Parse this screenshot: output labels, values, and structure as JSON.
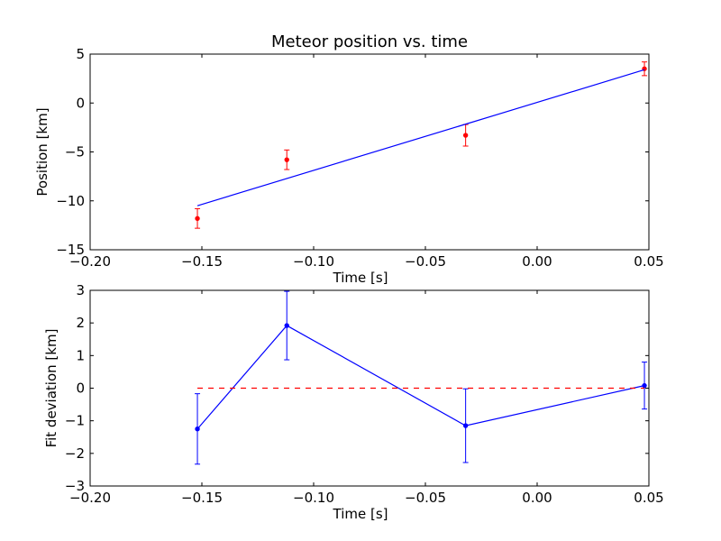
{
  "chart_data": [
    {
      "type": "scatter",
      "title": "Meteor position vs. time",
      "xlabel": "Time [s]",
      "ylabel": "Position [km]",
      "xlim": [
        -0.2,
        0.05
      ],
      "ylim": [
        -15,
        5
      ],
      "x_ticks": [
        -0.2,
        -0.15,
        -0.1,
        -0.05,
        0.0,
        0.05
      ],
      "x_tick_labels": [
        "−0.20",
        "−0.15",
        "−0.10",
        "−0.05",
        "0.00",
        "0.05"
      ],
      "y_ticks": [
        -15,
        -10,
        -5,
        0,
        5
      ],
      "y_tick_labels": [
        "−15",
        "−10",
        "−5",
        "0",
        "5"
      ],
      "grid": false,
      "colors": {
        "data": "#ff0000",
        "fit": "#0000ff"
      },
      "series": [
        {
          "style": "points-with-errorbars",
          "x": [
            -0.152,
            -0.112,
            -0.032,
            0.048
          ],
          "y": [
            -11.8,
            -5.8,
            -3.3,
            3.5
          ],
          "yerr": [
            1.0,
            1.0,
            1.1,
            0.7
          ]
        },
        {
          "style": "line",
          "x": [
            -0.152,
            0.048
          ],
          "y": [
            -10.5,
            3.4
          ]
        }
      ]
    },
    {
      "type": "scatter",
      "xlabel": "Time [s]",
      "ylabel": "Fit deviation [km]",
      "xlim": [
        -0.2,
        0.05
      ],
      "ylim": [
        -3,
        3
      ],
      "x_ticks": [
        -0.2,
        -0.15,
        -0.1,
        -0.05,
        0.0,
        0.05
      ],
      "x_tick_labels": [
        "−0.20",
        "−0.15",
        "−0.10",
        "−0.05",
        "0.00",
        "0.05"
      ],
      "y_ticks": [
        -3,
        -2,
        -1,
        0,
        1,
        2,
        3
      ],
      "y_tick_labels": [
        "−3",
        "−2",
        "−1",
        "0",
        "1",
        "2",
        "3"
      ],
      "grid": false,
      "colors": {
        "data": "#0000ff",
        "reference": "#ff0000"
      },
      "series": [
        {
          "style": "line-points-with-errorbars",
          "x": [
            -0.152,
            -0.112,
            -0.032,
            0.048
          ],
          "y": [
            -1.25,
            1.92,
            -1.15,
            0.08
          ],
          "yerr": [
            1.08,
            1.05,
            1.13,
            0.72
          ]
        },
        {
          "style": "dashed-reference",
          "x": [
            -0.152,
            0.048
          ],
          "y": [
            0,
            0
          ]
        }
      ]
    }
  ]
}
